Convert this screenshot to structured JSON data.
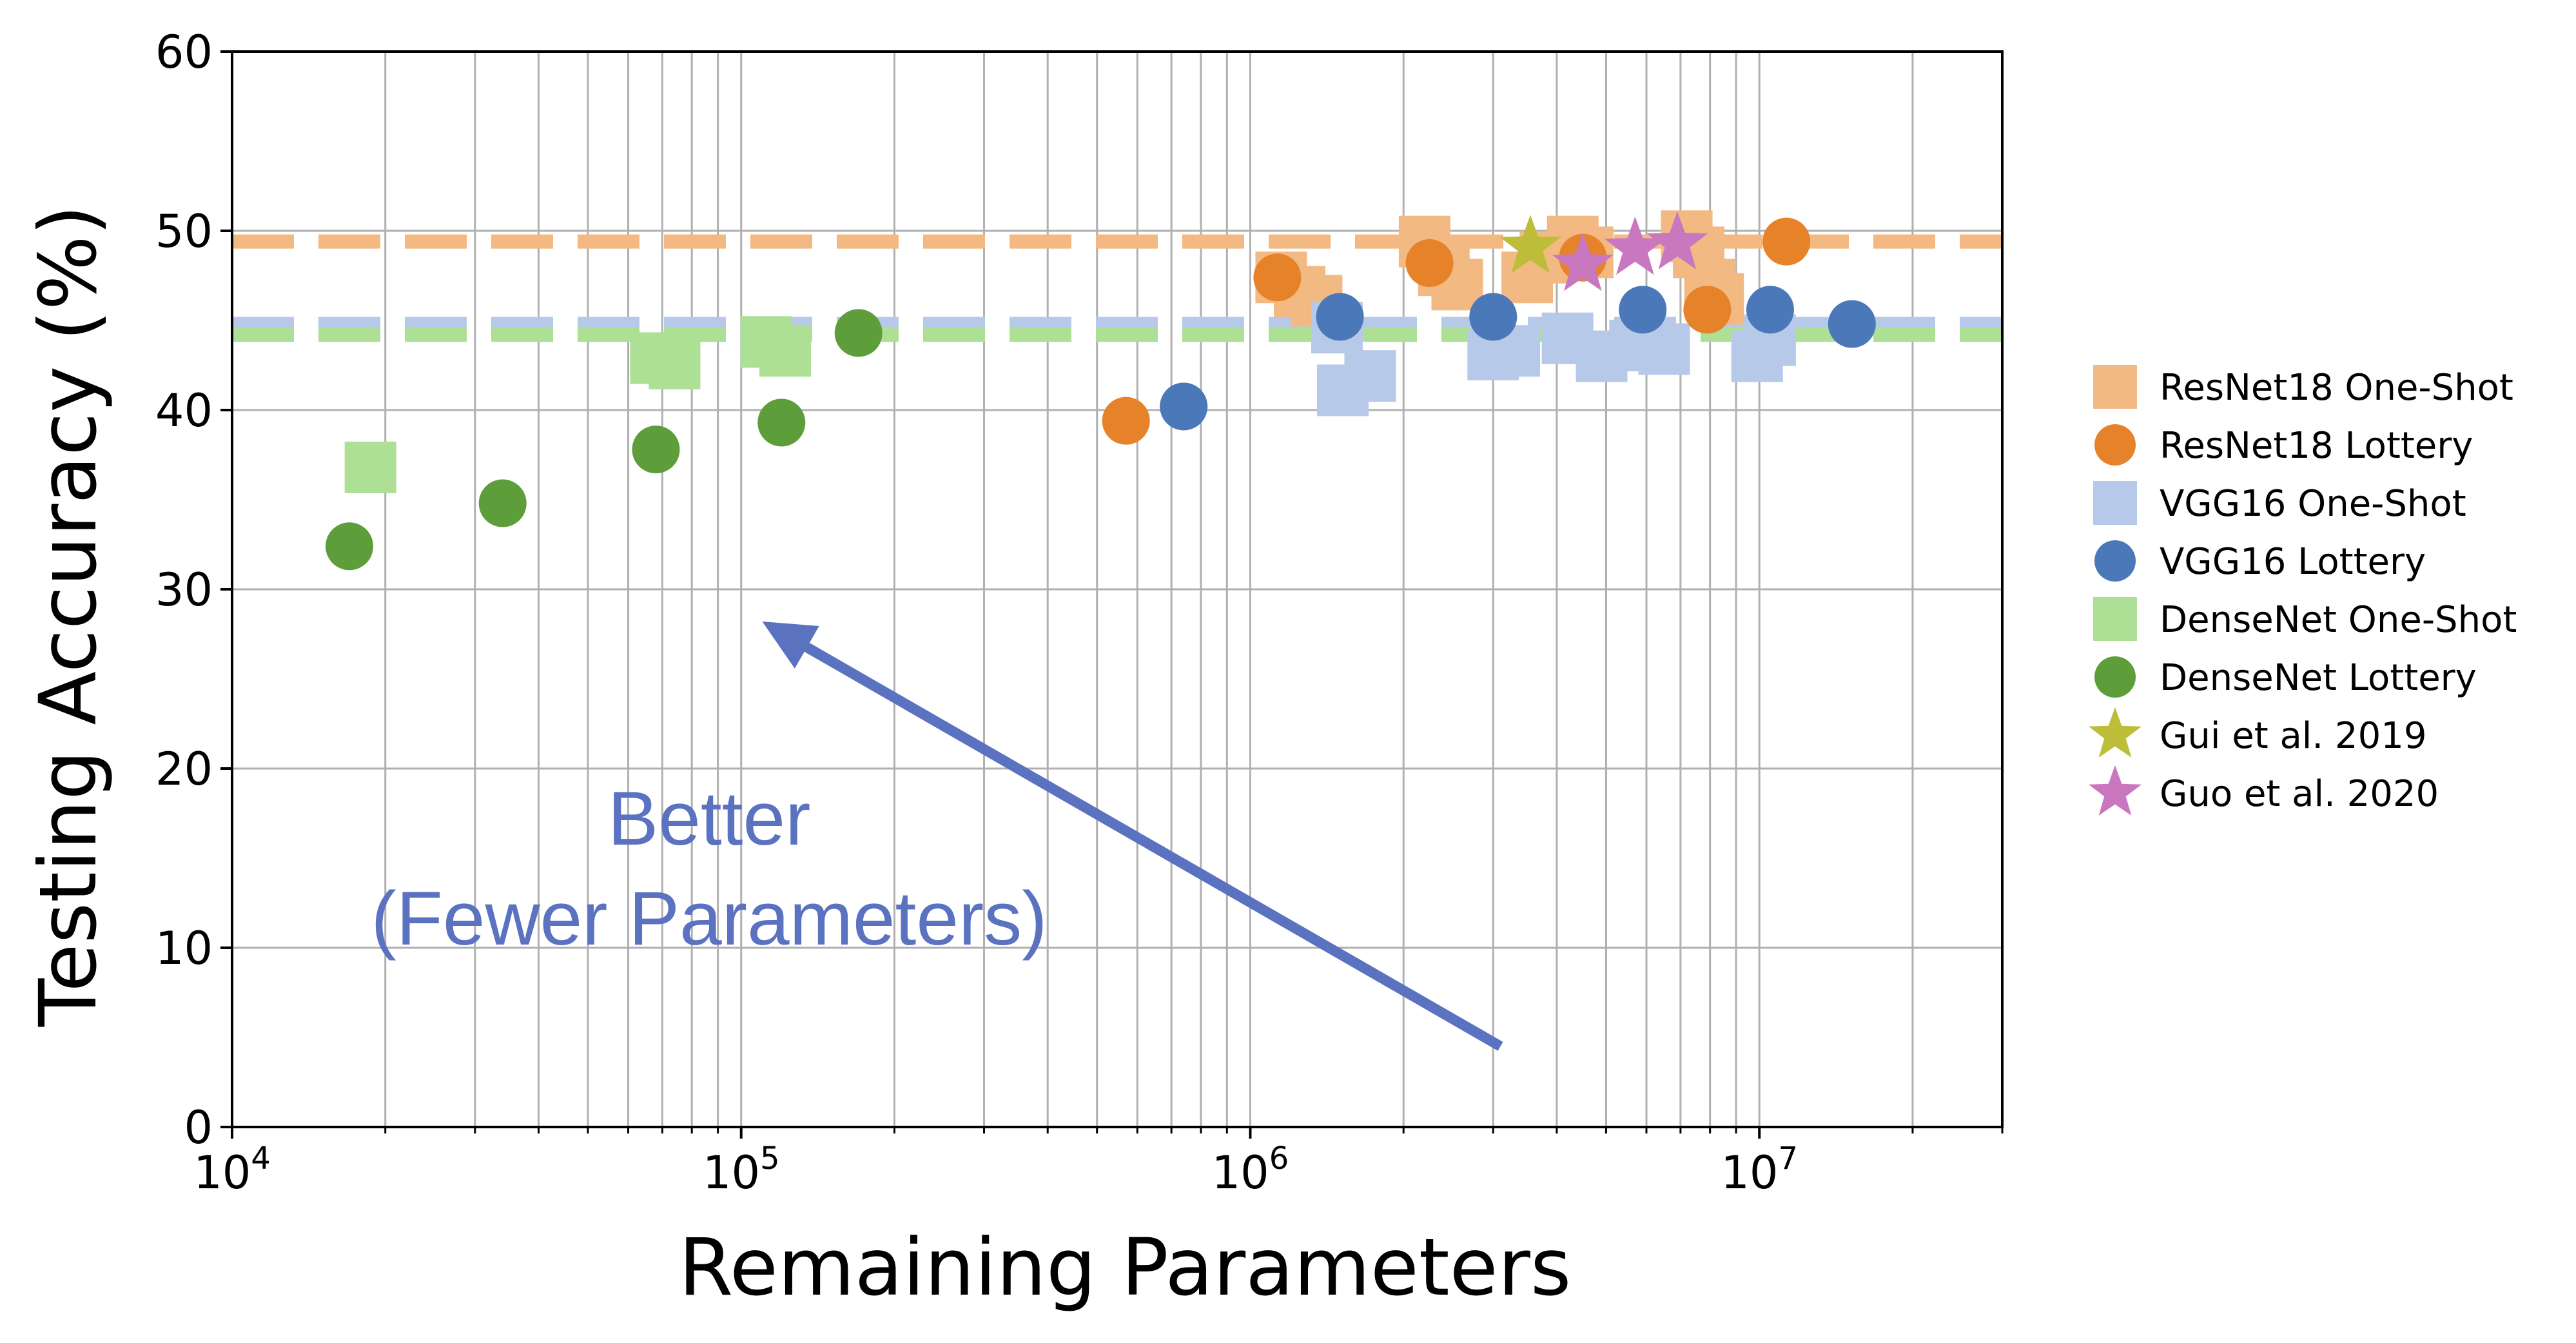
{
  "chart_data": {
    "type": "scatter",
    "xlabel": "Remaining Parameters",
    "ylabel": "Testing Accuracy (%)",
    "xscale": "log",
    "xlim": [
      10000,
      30000000
    ],
    "ylim": [
      0,
      60
    ],
    "grid": true,
    "x_ticks": [
      {
        "value": 10000,
        "base": "10",
        "exp": "4"
      },
      {
        "value": 100000,
        "base": "10",
        "exp": "5"
      },
      {
        "value": 1000000,
        "base": "10",
        "exp": "6"
      },
      {
        "value": 10000000,
        "base": "10",
        "exp": "7"
      }
    ],
    "y_ticks": [
      0,
      10,
      20,
      30,
      40,
      50,
      60
    ],
    "legend_position": "outside-right",
    "reference_lines": [
      {
        "series": "ResNet18",
        "y": 49.4,
        "color": "#f2b982"
      },
      {
        "series": "VGG16",
        "y": 44.8,
        "color": "#b7c9e8"
      },
      {
        "series": "DenseNet",
        "y": 44.2,
        "color": "#addf95"
      }
    ],
    "series": [
      {
        "name": "ResNet18 One-Shot",
        "marker": "square",
        "color": "#f2b982",
        "points": [
          [
            1150000,
            47.4
          ],
          [
            1250000,
            46.6
          ],
          [
            1350000,
            46.1
          ],
          [
            2200000,
            49.4
          ],
          [
            2400000,
            47.8
          ],
          [
            2550000,
            47.0
          ],
          [
            3500000,
            47.4
          ],
          [
            3800000,
            48.5
          ],
          [
            4300000,
            49.4
          ],
          [
            4600000,
            48.8
          ],
          [
            7200000,
            49.7
          ],
          [
            7600000,
            48.8
          ],
          [
            8000000,
            47.0
          ],
          [
            8300000,
            46.2
          ]
        ]
      },
      {
        "name": "ResNet18 Lottery",
        "marker": "circle",
        "color": "#e6822a",
        "points": [
          [
            570000,
            39.4
          ],
          [
            1130000,
            47.4
          ],
          [
            2250000,
            48.2
          ],
          [
            4500000,
            48.5
          ],
          [
            7900000,
            45.6
          ],
          [
            11300000,
            49.4
          ]
        ]
      },
      {
        "name": "VGG16 One-Shot",
        "marker": "square",
        "color": "#b7c9e8",
        "points": [
          [
            1480000,
            44.6
          ],
          [
            1520000,
            41.1
          ],
          [
            1720000,
            41.9
          ],
          [
            3000000,
            43.1
          ],
          [
            3300000,
            43.3
          ],
          [
            4200000,
            44.0
          ],
          [
            4900000,
            43.0
          ],
          [
            5700000,
            43.6
          ],
          [
            6500000,
            43.4
          ],
          [
            9900000,
            43.0
          ],
          [
            10500000,
            43.9
          ]
        ]
      },
      {
        "name": "VGG16 Lottery",
        "marker": "circle",
        "color": "#4a78b8",
        "points": [
          [
            740000,
            40.2
          ],
          [
            1500000,
            45.2
          ],
          [
            3000000,
            45.2
          ],
          [
            5900000,
            45.6
          ],
          [
            10500000,
            45.6
          ],
          [
            15200000,
            44.8
          ]
        ]
      },
      {
        "name": "DenseNet One-Shot",
        "marker": "square",
        "color": "#addf95",
        "points": [
          [
            18700,
            36.8
          ],
          [
            68000,
            42.9
          ],
          [
            74000,
            42.6
          ],
          [
            112000,
            43.8
          ],
          [
            122000,
            43.3
          ]
        ]
      },
      {
        "name": "DenseNet Lottery",
        "marker": "circle",
        "color": "#5d9d3a",
        "points": [
          [
            17000,
            32.4
          ],
          [
            34000,
            34.8
          ],
          [
            68000,
            37.8
          ],
          [
            120000,
            39.3
          ],
          [
            170000,
            44.3
          ]
        ]
      },
      {
        "name": "Gui et al. 2019",
        "marker": "star",
        "color": "#bdbd3a",
        "points": [
          [
            3550000,
            49.1
          ]
        ]
      },
      {
        "name": "Guo et al. 2020",
        "marker": "star",
        "color": "#c978c0",
        "points": [
          [
            4500000,
            48.1
          ],
          [
            5700000,
            49.0
          ],
          [
            6900000,
            49.3
          ]
        ]
      }
    ],
    "annotation": {
      "line1": "Better",
      "line2": "(Fewer Parameters)",
      "color": "#5b72c0",
      "arrow_from": [
        3100000,
        4.5
      ],
      "arrow_to": [
        110000,
        28.2
      ]
    }
  }
}
